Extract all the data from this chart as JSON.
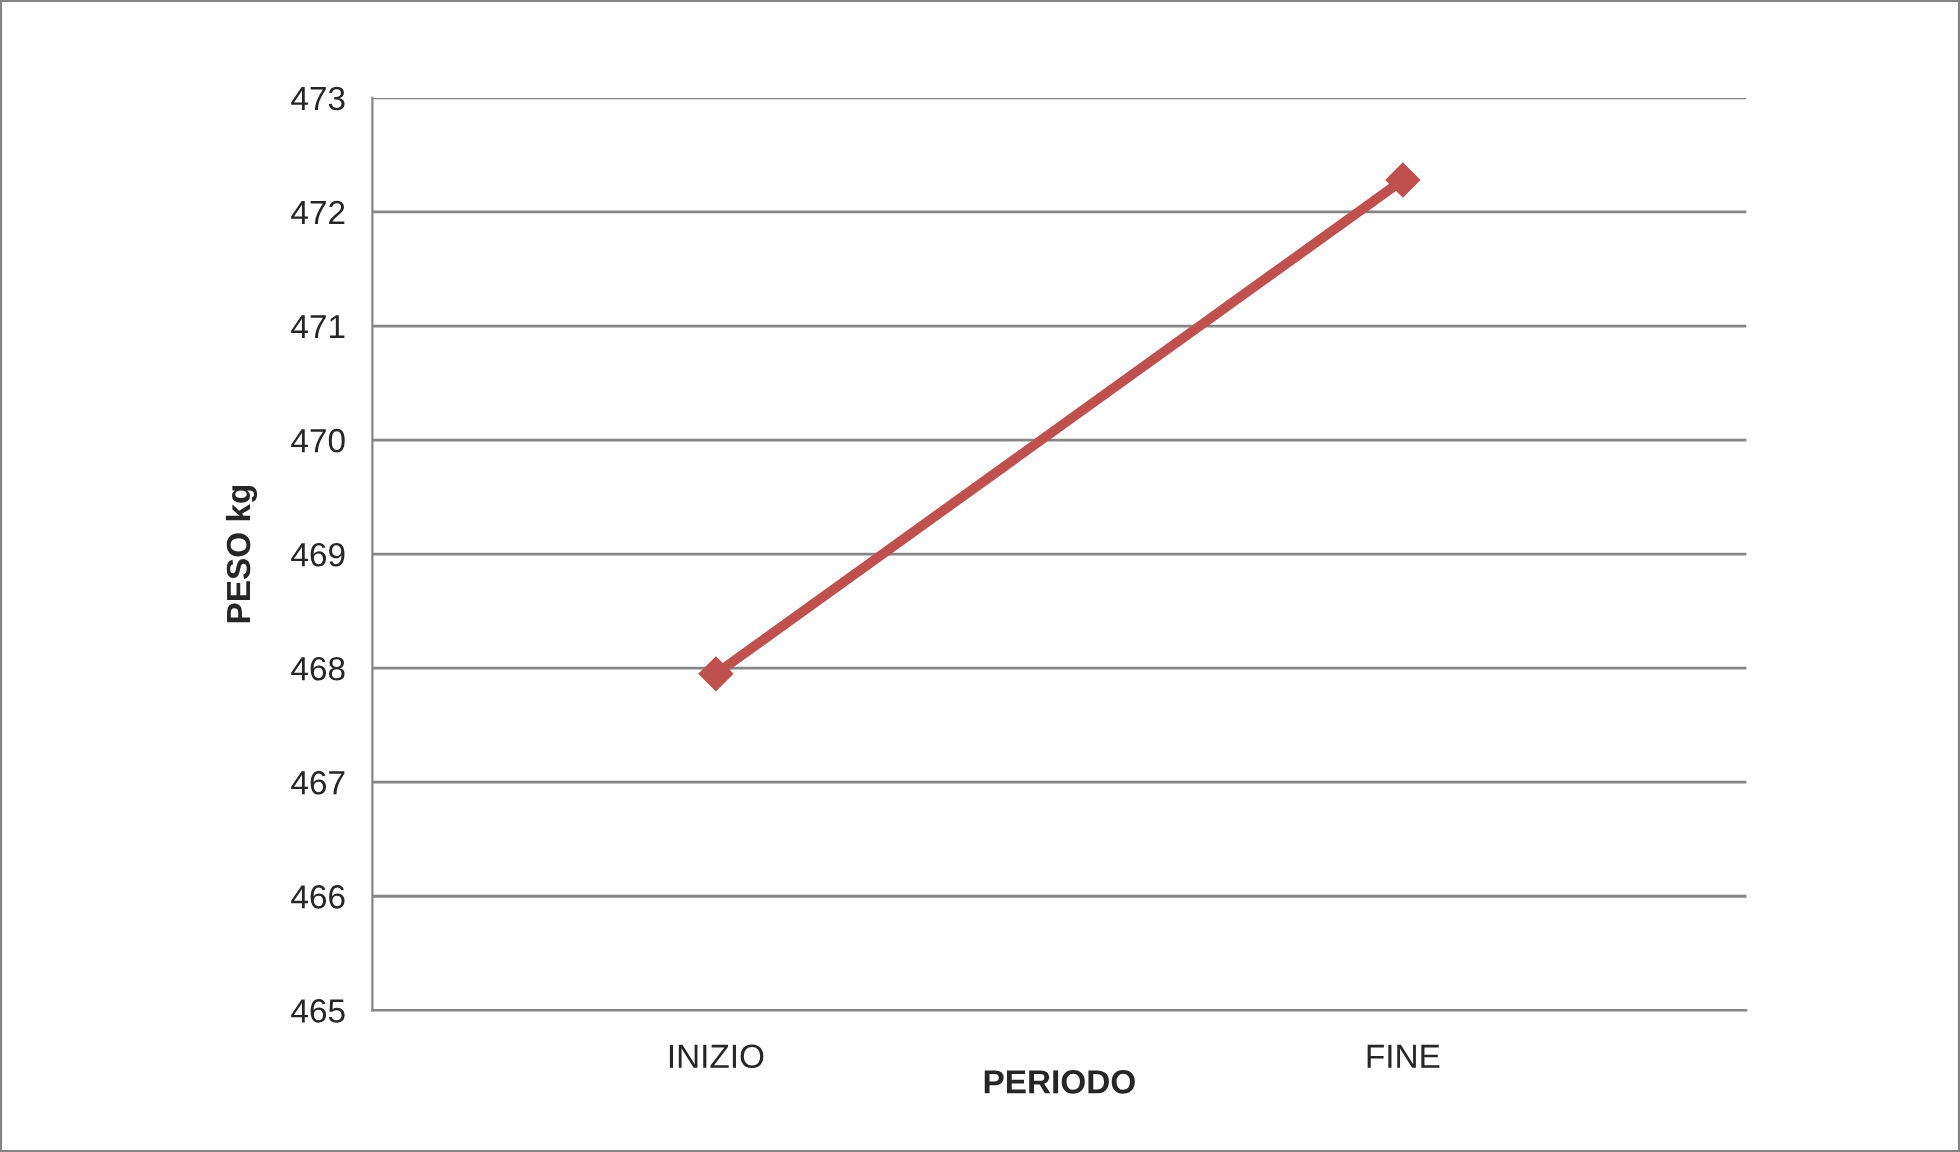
{
  "chart_data": {
    "type": "line",
    "xlabel": "PERIODO",
    "ylabel": "PESO kg",
    "categories": [
      "INIZIO",
      "FINE"
    ],
    "series": [
      {
        "color": "#c0504d",
        "values": [
          467.95,
          472.28
        ]
      }
    ],
    "ylim": [
      465,
      473
    ],
    "yticks": [
      465,
      466,
      467,
      468,
      469,
      470,
      471,
      472,
      473
    ],
    "grid": "y",
    "marker": "diamond",
    "line_style": "solid",
    "legend": false
  }
}
